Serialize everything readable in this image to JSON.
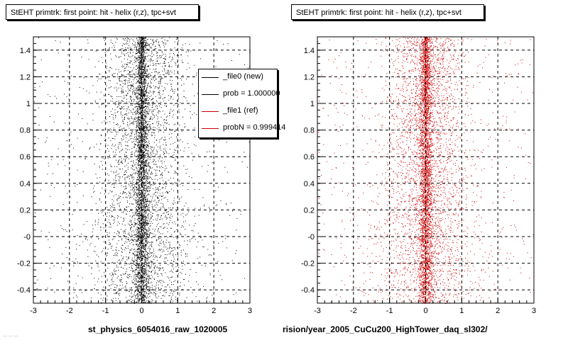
{
  "panels": [
    {
      "title": "StEHT primtrk: first point: hit - helix (r,z), tpc+svt",
      "x_title": "st_physics_6054016_raw_1020005",
      "marker_color": "#000000"
    },
    {
      "title": "StEHT primtrk: first point: hit - helix (r,z), tpc+svt",
      "x_title": "rision/year_2005_CuCu200_HighTower_daq_sl302/",
      "marker_color": "#cc0000"
    }
  ],
  "legend": {
    "entries": [
      {
        "label": "_file0 (new)",
        "color": "#000000"
      },
      {
        "label": "prob = 1.000000",
        "color": "#000000"
      },
      {
        "label": "_file1 (ref)",
        "color": "#cc0000"
      },
      {
        "label": "probN = 0.999414",
        "color": "#cc0000"
      }
    ]
  },
  "corner_note": "... ... ...",
  "chart_data": [
    {
      "type": "scatter",
      "title": "StEHT primtrk: first point: hit - helix (r,z), tpc+svt",
      "xlabel": "st_physics_6054016_raw_1020005",
      "xlim": [
        -3,
        3
      ],
      "ylim": [
        -0.5,
        1.5
      ],
      "x_ticks": [
        "-3",
        "-2",
        "-1",
        "0",
        "1",
        "2",
        "3"
      ],
      "y_ticks": [
        "-0.4",
        "-0.2",
        "-0",
        "0.2",
        "0.4",
        "0.6",
        "0.8",
        "1",
        "1.2",
        "1.4"
      ],
      "y_tick_values": [
        -0.4,
        -0.2,
        0,
        0.2,
        0.4,
        0.6,
        0.8,
        1,
        1.2,
        1.4
      ],
      "grid": true,
      "distribution": {
        "center_x": 0.0,
        "core_sigma_x": 0.08,
        "wide_sigma_x": 0.7,
        "n_points": 6500
      },
      "series": [
        {
          "name": "_file0 (new)",
          "color": "#000000"
        }
      ]
    },
    {
      "type": "scatter",
      "title": "StEHT primtrk: first point: hit - helix (r,z), tpc+svt",
      "xlabel": "rision/year_2005_CuCu200_HighTower_daq_sl302/",
      "xlim": [
        -3,
        3
      ],
      "ylim": [
        -0.5,
        1.5
      ],
      "x_ticks": [
        "-3",
        "-2",
        "-1",
        "0",
        "1",
        "2",
        "3"
      ],
      "y_ticks": [
        "-0.4",
        "-0.2",
        "-0",
        "0.2",
        "0.4",
        "0.6",
        "0.8",
        "1",
        "1.2",
        "1.4"
      ],
      "y_tick_values": [
        -0.4,
        -0.2,
        0,
        0.2,
        0.4,
        0.6,
        0.8,
        1,
        1.2,
        1.4
      ],
      "grid": true,
      "distribution": {
        "center_x": 0.0,
        "core_sigma_x": 0.08,
        "wide_sigma_x": 0.7,
        "n_points": 6500
      },
      "series": [
        {
          "name": "_file1 (ref)",
          "color": "#cc0000"
        }
      ]
    }
  ]
}
